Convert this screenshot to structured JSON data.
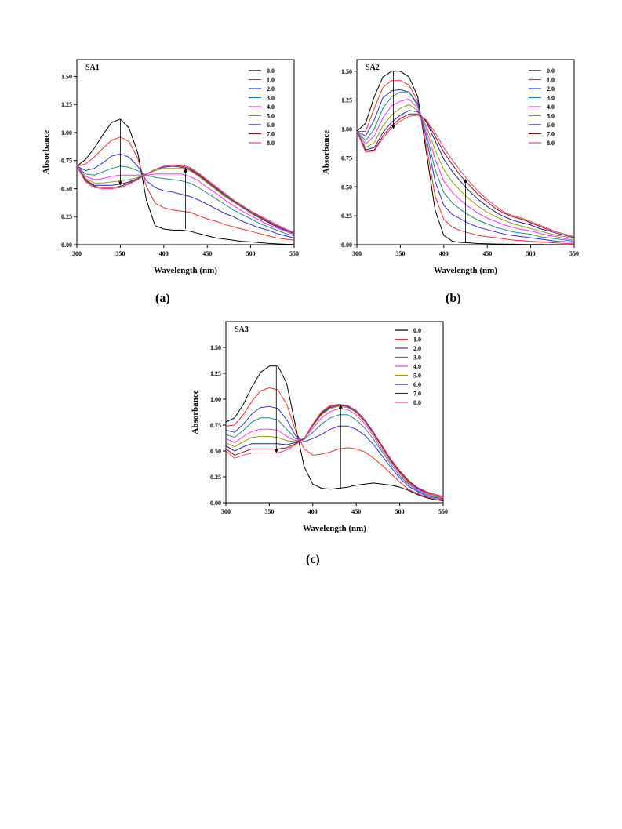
{
  "captions": [
    "(a)",
    "(b)",
    "(c)"
  ],
  "palette": [
    "#000000",
    "#ff2a2a",
    "#2d2df0",
    "#1c8c8c",
    "#ff2aff",
    "#9a9a00",
    "#1e1eaa",
    "#8c1414",
    "#ff3c6e"
  ],
  "chart_data": [
    {
      "type": "line",
      "title": "SA1",
      "xlabel": "Wavelength (nm)",
      "ylabel": "Absorbance",
      "xlim": [
        300,
        550
      ],
      "ylim": [
        0,
        1.65
      ],
      "xticks": [
        "300",
        "350",
        "400",
        "450",
        "500",
        "550"
      ],
      "yticks": [
        "0.00",
        "0.25",
        "0.50",
        "0.75",
        "1.00",
        "1.25",
        "1.50"
      ],
      "grid": false,
      "legend_position": "top-right",
      "x": [
        300,
        310,
        320,
        330,
        340,
        350,
        360,
        370,
        380,
        390,
        400,
        410,
        420,
        430,
        440,
        450,
        460,
        470,
        480,
        490,
        500,
        510,
        520,
        530,
        540,
        550
      ],
      "series": [
        {
          "name": "0.0",
          "values": [
            0.7,
            0.76,
            0.86,
            0.98,
            1.09,
            1.12,
            1.04,
            0.82,
            0.4,
            0.17,
            0.14,
            0.13,
            0.13,
            0.12,
            0.1,
            0.08,
            0.06,
            0.05,
            0.04,
            0.03,
            0.025,
            0.018,
            0.012,
            0.008,
            0.004,
            0.002
          ]
        },
        {
          "name": "1.0",
          "values": [
            0.7,
            0.72,
            0.78,
            0.86,
            0.93,
            0.96,
            0.92,
            0.77,
            0.52,
            0.37,
            0.33,
            0.31,
            0.3,
            0.29,
            0.26,
            0.23,
            0.21,
            0.18,
            0.16,
            0.14,
            0.12,
            0.1,
            0.08,
            0.06,
            0.05,
            0.04
          ]
        },
        {
          "name": "2.0",
          "values": [
            0.7,
            0.66,
            0.68,
            0.73,
            0.79,
            0.81,
            0.78,
            0.7,
            0.57,
            0.51,
            0.48,
            0.47,
            0.45,
            0.43,
            0.4,
            0.36,
            0.32,
            0.28,
            0.25,
            0.21,
            0.18,
            0.15,
            0.13,
            0.1,
            0.08,
            0.06
          ]
        },
        {
          "name": "3.0",
          "values": [
            0.7,
            0.63,
            0.62,
            0.65,
            0.68,
            0.7,
            0.69,
            0.66,
            0.62,
            0.6,
            0.59,
            0.58,
            0.57,
            0.55,
            0.51,
            0.46,
            0.41,
            0.36,
            0.31,
            0.27,
            0.23,
            0.19,
            0.16,
            0.13,
            0.1,
            0.08
          ]
        },
        {
          "name": "4.0",
          "values": [
            0.7,
            0.61,
            0.58,
            0.59,
            0.61,
            0.62,
            0.62,
            0.62,
            0.62,
            0.63,
            0.63,
            0.63,
            0.63,
            0.61,
            0.57,
            0.51,
            0.46,
            0.4,
            0.35,
            0.3,
            0.26,
            0.22,
            0.18,
            0.15,
            0.12,
            0.09
          ]
        },
        {
          "name": "5.0",
          "values": [
            0.7,
            0.59,
            0.55,
            0.55,
            0.56,
            0.57,
            0.58,
            0.6,
            0.63,
            0.66,
            0.68,
            0.68,
            0.68,
            0.66,
            0.61,
            0.55,
            0.49,
            0.43,
            0.38,
            0.33,
            0.28,
            0.24,
            0.2,
            0.16,
            0.13,
            0.1
          ]
        },
        {
          "name": "6.0",
          "values": [
            0.7,
            0.58,
            0.53,
            0.53,
            0.53,
            0.54,
            0.56,
            0.59,
            0.63,
            0.67,
            0.69,
            0.7,
            0.69,
            0.67,
            0.62,
            0.56,
            0.5,
            0.44,
            0.39,
            0.34,
            0.29,
            0.24,
            0.2,
            0.16,
            0.13,
            0.1
          ]
        },
        {
          "name": "7.0",
          "values": [
            0.7,
            0.57,
            0.52,
            0.51,
            0.51,
            0.52,
            0.55,
            0.58,
            0.63,
            0.67,
            0.7,
            0.71,
            0.7,
            0.68,
            0.63,
            0.57,
            0.51,
            0.45,
            0.4,
            0.35,
            0.3,
            0.25,
            0.21,
            0.17,
            0.14,
            0.11
          ]
        },
        {
          "name": "8.0",
          "values": [
            0.7,
            0.56,
            0.51,
            0.5,
            0.5,
            0.51,
            0.54,
            0.58,
            0.63,
            0.67,
            0.7,
            0.71,
            0.71,
            0.69,
            0.64,
            0.58,
            0.52,
            0.46,
            0.4,
            0.35,
            0.3,
            0.26,
            0.22,
            0.18,
            0.14,
            0.11
          ]
        }
      ],
      "annotations": [
        {
          "x": 350,
          "y_from": 1.12,
          "y_to": 0.53,
          "direction": "down"
        },
        {
          "x": 425,
          "y_from": 0.14,
          "y_to": 0.68,
          "direction": "up"
        }
      ]
    },
    {
      "type": "line",
      "title": "SA2",
      "xlabel": "Wavelength (nm)",
      "ylabel": "Absorbance",
      "xlim": [
        300,
        550
      ],
      "ylim": [
        0,
        1.6
      ],
      "xticks": [
        "300",
        "350",
        "400",
        "450",
        "500",
        "550"
      ],
      "yticks": [
        "0.00",
        "0.25",
        "0.50",
        "0.75",
        "1.00",
        "1.25",
        "1.50"
      ],
      "grid": false,
      "legend_position": "top-right",
      "x": [
        300,
        310,
        320,
        330,
        340,
        350,
        360,
        370,
        380,
        390,
        400,
        410,
        420,
        430,
        440,
        450,
        460,
        470,
        480,
        490,
        500,
        510,
        520,
        530,
        540,
        550
      ],
      "series": [
        {
          "name": "0.0",
          "values": [
            0.98,
            1.05,
            1.28,
            1.45,
            1.5,
            1.5,
            1.45,
            1.28,
            0.8,
            0.3,
            0.08,
            0.03,
            0.02,
            0.015,
            0.01,
            0.008,
            0.006,
            0.005,
            0.004,
            0.003,
            0.002,
            0.002,
            0.001,
            0.001,
            0.0,
            0.0
          ]
        },
        {
          "name": "1.0",
          "values": [
            0.98,
            0.98,
            1.18,
            1.36,
            1.42,
            1.42,
            1.38,
            1.24,
            0.86,
            0.42,
            0.22,
            0.15,
            0.12,
            0.1,
            0.08,
            0.07,
            0.06,
            0.05,
            0.04,
            0.035,
            0.03,
            0.025,
            0.02,
            0.015,
            0.01,
            0.008
          ]
        },
        {
          "name": "2.0",
          "values": [
            0.98,
            0.94,
            1.08,
            1.27,
            1.33,
            1.34,
            1.32,
            1.22,
            0.92,
            0.55,
            0.34,
            0.26,
            0.22,
            0.18,
            0.15,
            0.13,
            0.11,
            0.09,
            0.08,
            0.07,
            0.06,
            0.05,
            0.04,
            0.03,
            0.025,
            0.02
          ]
        },
        {
          "name": "3.0",
          "values": [
            0.98,
            0.9,
            1.0,
            1.18,
            1.28,
            1.32,
            1.32,
            1.2,
            0.96,
            0.65,
            0.45,
            0.36,
            0.3,
            0.25,
            0.21,
            0.18,
            0.15,
            0.13,
            0.11,
            0.1,
            0.09,
            0.07,
            0.06,
            0.05,
            0.04,
            0.03
          ]
        },
        {
          "name": "4.0",
          "values": [
            0.98,
            0.87,
            0.94,
            1.1,
            1.2,
            1.24,
            1.26,
            1.18,
            1.0,
            0.74,
            0.55,
            0.45,
            0.38,
            0.32,
            0.27,
            0.23,
            0.2,
            0.17,
            0.15,
            0.13,
            0.12,
            0.1,
            0.08,
            0.07,
            0.05,
            0.04
          ]
        },
        {
          "name": "5.0",
          "values": [
            0.98,
            0.84,
            0.88,
            1.03,
            1.12,
            1.18,
            1.21,
            1.16,
            1.03,
            0.82,
            0.65,
            0.54,
            0.46,
            0.39,
            0.33,
            0.28,
            0.24,
            0.21,
            0.18,
            0.16,
            0.14,
            0.12,
            0.1,
            0.08,
            0.07,
            0.05
          ]
        },
        {
          "name": "6.0",
          "values": [
            0.98,
            0.82,
            0.84,
            0.97,
            1.06,
            1.12,
            1.16,
            1.15,
            1.06,
            0.9,
            0.74,
            0.63,
            0.54,
            0.46,
            0.39,
            0.33,
            0.28,
            0.24,
            0.21,
            0.19,
            0.17,
            0.14,
            0.12,
            0.1,
            0.08,
            0.06
          ]
        },
        {
          "name": "7.0",
          "values": [
            0.98,
            0.81,
            0.82,
            0.94,
            1.03,
            1.09,
            1.13,
            1.13,
            1.07,
            0.94,
            0.8,
            0.69,
            0.59,
            0.51,
            0.43,
            0.37,
            0.31,
            0.27,
            0.24,
            0.22,
            0.19,
            0.16,
            0.13,
            0.11,
            0.09,
            0.07
          ]
        },
        {
          "name": "8.0",
          "values": [
            0.98,
            0.8,
            0.81,
            0.92,
            1.01,
            1.07,
            1.11,
            1.12,
            1.08,
            0.97,
            0.84,
            0.73,
            0.63,
            0.54,
            0.46,
            0.39,
            0.33,
            0.28,
            0.25,
            0.23,
            0.2,
            0.17,
            0.14,
            0.11,
            0.09,
            0.07
          ]
        }
      ],
      "annotations": [
        {
          "x": 342,
          "y_from": 1.5,
          "y_to": 1.0,
          "direction": "down"
        },
        {
          "x": 425,
          "y_from": 0.02,
          "y_to": 0.57,
          "direction": "up"
        }
      ]
    },
    {
      "type": "line",
      "title": "SA3",
      "xlabel": "Wavelength (nm)",
      "ylabel": "Absorbance",
      "xlim": [
        300,
        550
      ],
      "ylim": [
        0,
        1.75
      ],
      "xticks": [
        "300",
        "350",
        "400",
        "450",
        "500",
        "550"
      ],
      "yticks": [
        "0.00",
        "0.25",
        "0.50",
        "0.75",
        "1.00",
        "1.25",
        "1.50"
      ],
      "grid": false,
      "legend_position": "top-right",
      "x": [
        300,
        310,
        320,
        330,
        340,
        350,
        360,
        370,
        380,
        390,
        400,
        410,
        420,
        430,
        440,
        450,
        460,
        470,
        480,
        490,
        500,
        510,
        520,
        530,
        540,
        550
      ],
      "series": [
        {
          "name": "0.0",
          "values": [
            0.78,
            0.82,
            0.95,
            1.12,
            1.26,
            1.32,
            1.32,
            1.15,
            0.75,
            0.35,
            0.18,
            0.14,
            0.13,
            0.14,
            0.15,
            0.17,
            0.18,
            0.19,
            0.18,
            0.17,
            0.15,
            0.12,
            0.08,
            0.05,
            0.03,
            0.02
          ]
        },
        {
          "name": "1.0",
          "values": [
            0.74,
            0.75,
            0.85,
            0.98,
            1.08,
            1.11,
            1.09,
            0.95,
            0.7,
            0.52,
            0.46,
            0.47,
            0.49,
            0.52,
            0.53,
            0.52,
            0.49,
            0.43,
            0.36,
            0.28,
            0.2,
            0.13,
            0.09,
            0.06,
            0.04,
            0.03
          ]
        },
        {
          "name": "2.0",
          "values": [
            0.7,
            0.68,
            0.76,
            0.86,
            0.92,
            0.93,
            0.91,
            0.8,
            0.65,
            0.59,
            0.62,
            0.66,
            0.71,
            0.74,
            0.74,
            0.71,
            0.65,
            0.56,
            0.45,
            0.34,
            0.24,
            0.16,
            0.11,
            0.07,
            0.05,
            0.04
          ]
        },
        {
          "name": "3.0",
          "values": [
            0.66,
            0.63,
            0.7,
            0.78,
            0.82,
            0.82,
            0.8,
            0.71,
            0.62,
            0.61,
            0.68,
            0.76,
            0.82,
            0.85,
            0.85,
            0.8,
            0.72,
            0.61,
            0.49,
            0.37,
            0.26,
            0.18,
            0.12,
            0.08,
            0.06,
            0.05
          ]
        },
        {
          "name": "4.0",
          "values": [
            0.62,
            0.58,
            0.64,
            0.69,
            0.71,
            0.71,
            0.7,
            0.64,
            0.6,
            0.62,
            0.72,
            0.82,
            0.88,
            0.91,
            0.9,
            0.85,
            0.76,
            0.64,
            0.51,
            0.39,
            0.28,
            0.19,
            0.13,
            0.09,
            0.07,
            0.05
          ]
        },
        {
          "name": "5.0",
          "values": [
            0.58,
            0.54,
            0.59,
            0.63,
            0.64,
            0.64,
            0.63,
            0.6,
            0.59,
            0.62,
            0.74,
            0.85,
            0.91,
            0.93,
            0.92,
            0.87,
            0.78,
            0.66,
            0.53,
            0.4,
            0.29,
            0.2,
            0.14,
            0.1,
            0.07,
            0.06
          ]
        },
        {
          "name": "6.0",
          "values": [
            0.55,
            0.5,
            0.54,
            0.57,
            0.57,
            0.57,
            0.57,
            0.56,
            0.58,
            0.62,
            0.75,
            0.86,
            0.92,
            0.94,
            0.93,
            0.88,
            0.79,
            0.67,
            0.54,
            0.41,
            0.3,
            0.21,
            0.14,
            0.1,
            0.08,
            0.06
          ]
        },
        {
          "name": "7.0",
          "values": [
            0.52,
            0.46,
            0.49,
            0.52,
            0.52,
            0.52,
            0.52,
            0.53,
            0.57,
            0.62,
            0.76,
            0.87,
            0.93,
            0.95,
            0.94,
            0.89,
            0.8,
            0.68,
            0.54,
            0.41,
            0.3,
            0.21,
            0.15,
            0.1,
            0.08,
            0.06
          ]
        },
        {
          "name": "8.0",
          "values": [
            0.5,
            0.43,
            0.46,
            0.48,
            0.48,
            0.48,
            0.48,
            0.51,
            0.56,
            0.62,
            0.76,
            0.88,
            0.94,
            0.95,
            0.94,
            0.89,
            0.8,
            0.68,
            0.55,
            0.42,
            0.31,
            0.22,
            0.15,
            0.11,
            0.08,
            0.06
          ]
        }
      ],
      "annotations": [
        {
          "x": 358,
          "y_from": 1.32,
          "y_to": 0.48,
          "direction": "down"
        },
        {
          "x": 432,
          "y_from": 0.13,
          "y_to": 0.95,
          "direction": "up"
        }
      ]
    }
  ]
}
